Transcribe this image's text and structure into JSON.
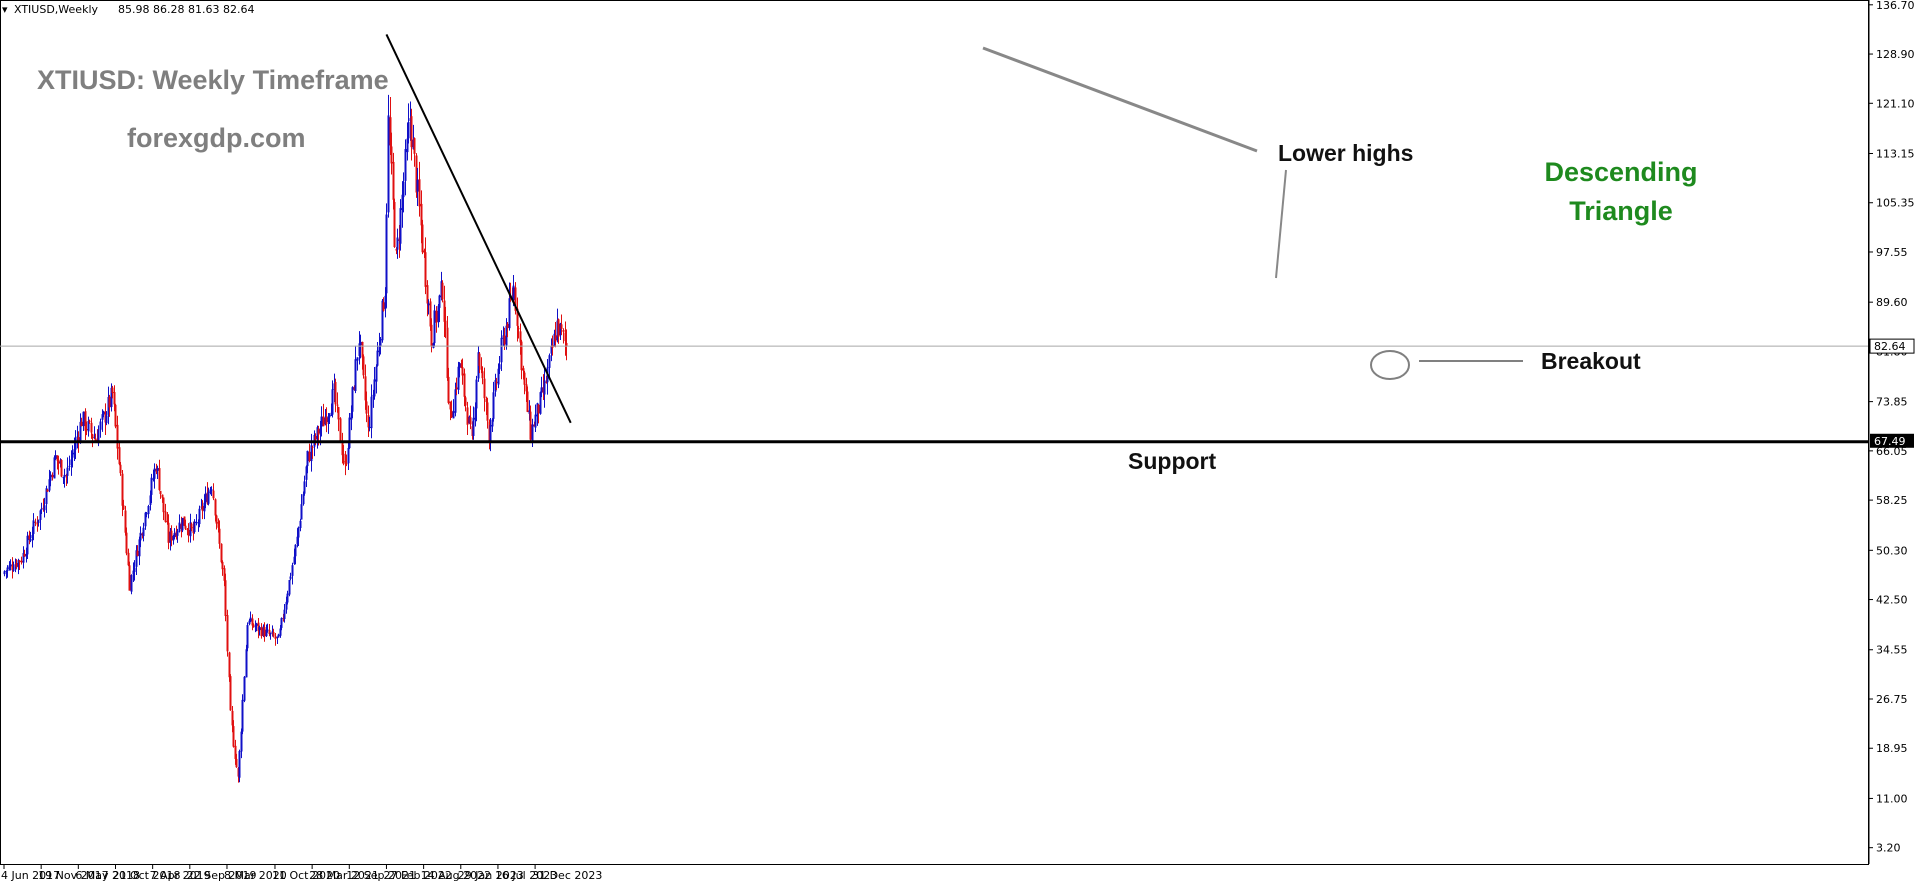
{
  "header": {
    "symbol_timeframe": "XTIUSD,Weekly",
    "ohlc": "85.98 86.28 81.63 82.64"
  },
  "annotations": {
    "title": "XTIUSD: Weekly Timeframe",
    "website": "forexgdp.com",
    "lower_highs": "Lower highs",
    "pattern_line1": "Descending",
    "pattern_line2": "Triangle",
    "breakout": "Breakout",
    "support": "Support"
  },
  "colors": {
    "bull": "#1010c8",
    "bear": "#e01010",
    "pattern_text": "#1e8a1e",
    "title_text": "#7f7f7f",
    "trendline": "#000000",
    "lower_highs_line": "#888888"
  },
  "chart_data": {
    "type": "candlestick",
    "timeframe": "Weekly",
    "symbol": "XTIUSD",
    "y_axis_labels": [
      "136.70",
      "128.90",
      "121.10",
      "113.15",
      "105.35",
      "97.55",
      "89.60",
      "81.80",
      "73.85",
      "66.05",
      "58.25",
      "50.30",
      "42.50",
      "34.55",
      "26.75",
      "18.95",
      "11.00",
      "3.20"
    ],
    "ylim": [
      0.0,
      136.7
    ],
    "x_axis_labels": [
      "4 Jun 2017",
      "19 Nov 2017",
      "6 May 2018",
      "21 Oct 2018",
      "7 Apr 2019",
      "22 Sep 2019",
      "8 Mar 2020",
      "11 Oct 2020",
      "28 Mar 2021",
      "12 Sep 2021",
      "27 Feb 2022",
      "14 Aug 2022",
      "29 Jan 2023",
      "16 Jul 2023",
      "31 Dec 2023"
    ],
    "current_price": 82.64,
    "current_price_label": "82.64",
    "support_level": 67.49,
    "support_label": "67.49",
    "descending_trendline": [
      {
        "date": "2022-02-27",
        "price": 132.0
      },
      {
        "date": "2024-06-09",
        "price": 70.5
      }
    ],
    "price_path": [
      {
        "date": "2017-06-04",
        "close": 47
      },
      {
        "date": "2017-08-20",
        "close": 49
      },
      {
        "date": "2017-11-19",
        "close": 57
      },
      {
        "date": "2018-01-21",
        "close": 65
      },
      {
        "date": "2018-03-11",
        "close": 62
      },
      {
        "date": "2018-05-20",
        "close": 71
      },
      {
        "date": "2018-07-22",
        "close": 68
      },
      {
        "date": "2018-10-07",
        "close": 75
      },
      {
        "date": "2018-12-23",
        "close": 45
      },
      {
        "date": "2019-04-21",
        "close": 64
      },
      {
        "date": "2019-06-16",
        "close": 52
      },
      {
        "date": "2019-08-18",
        "close": 55
      },
      {
        "date": "2019-10-06",
        "close": 53
      },
      {
        "date": "2019-12-29",
        "close": 61
      },
      {
        "date": "2020-02-23",
        "close": 45
      },
      {
        "date": "2020-03-22",
        "close": 24
      },
      {
        "date": "2020-04-26",
        "close": 14
      },
      {
        "date": "2020-06-07",
        "close": 39
      },
      {
        "date": "2020-10-25",
        "close": 36
      },
      {
        "date": "2021-01-17",
        "close": 52
      },
      {
        "date": "2021-03-07",
        "close": 65
      },
      {
        "date": "2021-07-04",
        "close": 75
      },
      {
        "date": "2021-08-22",
        "close": 63
      },
      {
        "date": "2021-10-24",
        "close": 84
      },
      {
        "date": "2021-12-05",
        "close": 69
      },
      {
        "date": "2022-02-20",
        "close": 92
      },
      {
        "date": "2022-03-06",
        "close": 118
      },
      {
        "date": "2022-04-10",
        "close": 96
      },
      {
        "date": "2022-06-12",
        "close": 119
      },
      {
        "date": "2022-09-18",
        "close": 84
      },
      {
        "date": "2022-11-06",
        "close": 92
      },
      {
        "date": "2022-12-11",
        "close": 71
      },
      {
        "date": "2023-01-22",
        "close": 80
      },
      {
        "date": "2023-03-19",
        "close": 67
      },
      {
        "date": "2023-04-16",
        "close": 82
      },
      {
        "date": "2023-06-04",
        "close": 69
      },
      {
        "date": "2023-07-30",
        "close": 82
      },
      {
        "date": "2023-09-24",
        "close": 92
      },
      {
        "date": "2023-11-12",
        "close": 76
      },
      {
        "date": "2023-12-10",
        "close": 69
      },
      {
        "date": "2024-02-11",
        "close": 76
      },
      {
        "date": "2024-04-07",
        "close": 86
      },
      {
        "date": "2024-05-19",
        "close": 82.64
      }
    ]
  }
}
